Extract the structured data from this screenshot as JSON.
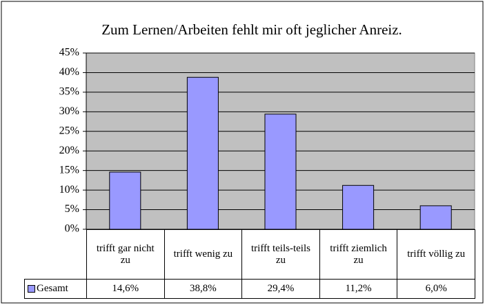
{
  "chart_data": {
    "type": "bar",
    "title": "Zum Lernen/Arbeiten fehlt mir oft jeglicher Anreiz.",
    "categories": [
      "trifft gar nicht zu",
      "trifft wenig zu",
      "trifft teils-teils zu",
      "trifft ziemlich zu",
      "trifft völlig zu"
    ],
    "series": [
      {
        "name": "Gesamt",
        "color": "#9999ff",
        "values": [
          14.6,
          38.8,
          29.4,
          11.2,
          6.0
        ],
        "value_labels": [
          "14,6%",
          "38,8%",
          "29,4%",
          "11,2%",
          "6,0%"
        ]
      }
    ],
    "ylim": [
      0,
      45
    ],
    "yticks": [
      {
        "value": 0,
        "label": "0%"
      },
      {
        "value": 5,
        "label": "5%"
      },
      {
        "value": 10,
        "label": "10%"
      },
      {
        "value": 15,
        "label": "15%"
      },
      {
        "value": 20,
        "label": "20%"
      },
      {
        "value": 25,
        "label": "25%"
      },
      {
        "value": 30,
        "label": "30%"
      },
      {
        "value": 35,
        "label": "35%"
      },
      {
        "value": 40,
        "label": "40%"
      },
      {
        "value": 45,
        "label": "45%"
      }
    ],
    "grid": true,
    "plot_background": "#c0c0c0"
  }
}
